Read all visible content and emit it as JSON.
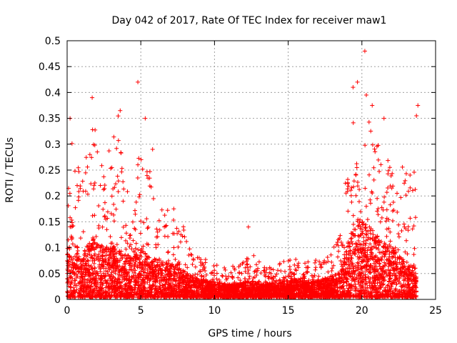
{
  "chart_data": {
    "type": "scatter",
    "title": "Day 042 of 2017, Rate Of TEC Index for receiver maw1",
    "xlabel": "GPS time / hours",
    "ylabel": "ROTI / TECUs",
    "xlim": [
      0,
      25
    ],
    "ylim": [
      0,
      0.5
    ],
    "xticks": [
      0,
      5,
      10,
      15,
      20,
      25
    ],
    "xtick_labels": [
      "0",
      "5",
      "10",
      "15",
      "20",
      "25"
    ],
    "yticks": [
      0,
      0.05,
      0.1,
      0.15,
      0.2,
      0.25,
      0.3,
      0.35,
      0.4,
      0.45,
      0.5
    ],
    "ytick_labels": [
      "0",
      "0.05",
      "0.1",
      "0.15",
      "0.2",
      "0.25",
      "0.3",
      "0.35",
      "0.4",
      "0.45",
      "0.5"
    ],
    "grid": true,
    "marker": "+",
    "color": "#ff0000",
    "envelope_hours": [
      0,
      0.3,
      1,
      1.7,
      2.5,
      3.5,
      4,
      4.8,
      5.5,
      6.5,
      7.5,
      8.5,
      10,
      11,
      12,
      12.5,
      13.5,
      14.5,
      15.5,
      16.5,
      17.5,
      18.5,
      19,
      19.5,
      20,
      20.5,
      21,
      21.5,
      22,
      22.5,
      23,
      23.7
    ],
    "envelope_typical": [
      0.08,
      0.12,
      0.08,
      0.12,
      0.1,
      0.1,
      0.08,
      0.1,
      0.08,
      0.07,
      0.06,
      0.04,
      0.03,
      0.025,
      0.03,
      0.03,
      0.025,
      0.03,
      0.035,
      0.03,
      0.035,
      0.05,
      0.1,
      0.15,
      0.15,
      0.14,
      0.12,
      0.11,
      0.1,
      0.08,
      0.07,
      0.06
    ],
    "envelope_peak": [
      0.22,
      0.33,
      0.22,
      0.36,
      0.25,
      0.36,
      0.2,
      0.3,
      0.26,
      0.18,
      0.18,
      0.09,
      0.07,
      0.06,
      0.08,
      0.09,
      0.06,
      0.08,
      0.08,
      0.08,
      0.08,
      0.12,
      0.28,
      0.36,
      0.38,
      0.35,
      0.32,
      0.28,
      0.26,
      0.22,
      0.3,
      0.24
    ],
    "outliers": [
      {
        "x": 1.7,
        "y": 0.39
      },
      {
        "x": 4.8,
        "y": 0.42
      },
      {
        "x": 5.3,
        "y": 0.35
      },
      {
        "x": 3.6,
        "y": 0.365
      },
      {
        "x": 0.2,
        "y": 0.35
      },
      {
        "x": 12.3,
        "y": 0.14
      },
      {
        "x": 20.2,
        "y": 0.48
      },
      {
        "x": 19.7,
        "y": 0.42
      },
      {
        "x": 20.3,
        "y": 0.395
      },
      {
        "x": 20.7,
        "y": 0.375
      },
      {
        "x": 19.4,
        "y": 0.41
      },
      {
        "x": 23.8,
        "y": 0.375
      },
      {
        "x": 23.7,
        "y": 0.355
      },
      {
        "x": 21.5,
        "y": 0.35
      },
      {
        "x": 5.8,
        "y": 0.29
      }
    ]
  }
}
